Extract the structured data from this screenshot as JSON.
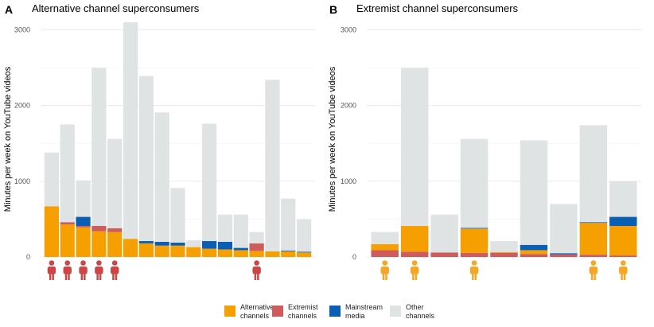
{
  "colors": {
    "alternative": "#f5a000",
    "extremist": "#cf5c5c",
    "mainstream": "#0a5fb4",
    "other": "#e0e3e3",
    "person_a": "#cf4444",
    "person_b": "#f5a623"
  },
  "legend": [
    {
      "key": "alternative",
      "line1": "Alternative",
      "line2": "channels"
    },
    {
      "key": "extremist",
      "line1": "Extremist",
      "line2": "channels"
    },
    {
      "key": "mainstream",
      "line1": "Mainstream",
      "line2": "media"
    },
    {
      "key": "other",
      "line1": "Other",
      "line2": "channels"
    }
  ],
  "chart_data": [
    {
      "type": "bar",
      "stacked": true,
      "letter": "A",
      "title": "Alternative channel superconsumers",
      "ylabel": "Minutes per week on YouTube videos",
      "ylim": [
        0,
        3100
      ],
      "yticks": [
        0,
        1000,
        2000,
        3000
      ],
      "grid": true,
      "person_icon_color": "person_a",
      "bars": [
        {
          "alternative": 670,
          "extremist": 0,
          "mainstream": 0,
          "other": 710,
          "person": true
        },
        {
          "alternative": 430,
          "extremist": 30,
          "mainstream": 0,
          "other": 1290,
          "person": true
        },
        {
          "alternative": 390,
          "extremist": 20,
          "mainstream": 120,
          "other": 480,
          "person": true
        },
        {
          "alternative": 340,
          "extremist": 70,
          "mainstream": 0,
          "other": 2090,
          "person": true
        },
        {
          "alternative": 330,
          "extremist": 50,
          "mainstream": 0,
          "other": 1180,
          "person": true
        },
        {
          "alternative": 240,
          "extremist": 0,
          "mainstream": 0,
          "other": 2860,
          "person": false
        },
        {
          "alternative": 180,
          "extremist": 0,
          "mainstream": 30,
          "other": 2180,
          "person": false
        },
        {
          "alternative": 150,
          "extremist": 0,
          "mainstream": 50,
          "other": 1710,
          "person": false
        },
        {
          "alternative": 150,
          "extremist": 0,
          "mainstream": 40,
          "other": 720,
          "person": false
        },
        {
          "alternative": 130,
          "extremist": 0,
          "mainstream": 0,
          "other": 90,
          "person": false
        },
        {
          "alternative": 110,
          "extremist": 0,
          "mainstream": 100,
          "other": 1550,
          "person": false
        },
        {
          "alternative": 100,
          "extremist": 0,
          "mainstream": 100,
          "other": 360,
          "person": false
        },
        {
          "alternative": 90,
          "extremist": 0,
          "mainstream": 30,
          "other": 440,
          "person": false
        },
        {
          "alternative": 80,
          "extremist": 100,
          "mainstream": 0,
          "other": 150,
          "person": true
        },
        {
          "alternative": 75,
          "extremist": 0,
          "mainstream": 0,
          "other": 2265,
          "person": false
        },
        {
          "alternative": 75,
          "extremist": 0,
          "mainstream": 10,
          "other": 685,
          "person": false
        },
        {
          "alternative": 60,
          "extremist": 0,
          "mainstream": 10,
          "other": 430,
          "person": false
        }
      ]
    },
    {
      "type": "bar",
      "stacked": true,
      "letter": "B",
      "title": "Extremist channel superconsumers",
      "ylabel": "Minutes per week on YouTube videos",
      "ylim": [
        0,
        3100
      ],
      "yticks": [
        0,
        1000,
        2000,
        3000
      ],
      "grid": true,
      "person_icon_color": "person_b",
      "bars": [
        {
          "extremist": 90,
          "alternative": 80,
          "mainstream": 0,
          "other": 160,
          "person": true
        },
        {
          "extremist": 70,
          "alternative": 340,
          "mainstream": 0,
          "other": 2090,
          "person": true
        },
        {
          "extremist": 60,
          "alternative": 0,
          "mainstream": 0,
          "other": 500,
          "person": false
        },
        {
          "extremist": 55,
          "alternative": 320,
          "mainstream": 10,
          "other": 1175,
          "person": true
        },
        {
          "extremist": 55,
          "alternative": 10,
          "mainstream": 0,
          "other": 145,
          "person": false
        },
        {
          "extremist": 40,
          "alternative": 50,
          "mainstream": 70,
          "other": 1380,
          "person": false
        },
        {
          "extremist": 35,
          "alternative": 0,
          "mainstream": 15,
          "other": 650,
          "person": false
        },
        {
          "extremist": 30,
          "alternative": 420,
          "mainstream": 10,
          "other": 1280,
          "person": true
        },
        {
          "extremist": 20,
          "alternative": 390,
          "mainstream": 120,
          "other": 470,
          "person": true
        }
      ]
    }
  ]
}
